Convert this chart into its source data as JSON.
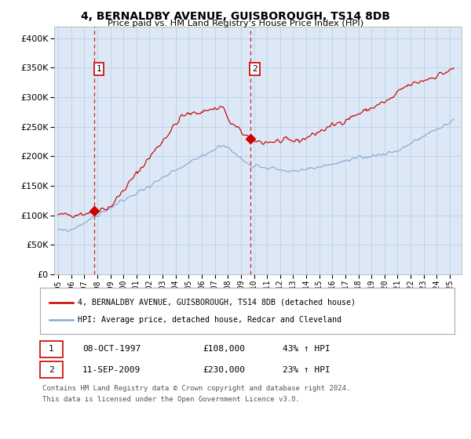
{
  "title": "4, BERNALDBY AVENUE, GUISBOROUGH, TS14 8DB",
  "subtitle": "Price paid vs. HM Land Registry's House Price Index (HPI)",
  "legend_line1": "4, BERNALDBY AVENUE, GUISBOROUGH, TS14 8DB (detached house)",
  "legend_line2": "HPI: Average price, detached house, Redcar and Cleveland",
  "annotation1_date": "08-OCT-1997",
  "annotation1_price": "£108,000",
  "annotation1_hpi": "43% ↑ HPI",
  "annotation2_date": "11-SEP-2009",
  "annotation2_price": "£230,000",
  "annotation2_hpi": "23% ↑ HPI",
  "footer_line1": "Contains HM Land Registry data © Crown copyright and database right 2024.",
  "footer_line2": "This data is licensed under the Open Government Licence v3.0.",
  "red_color": "#cc0000",
  "blue_color": "#88aad4",
  "bg_color": "#dce8f5",
  "marker1_year": 1997.77,
  "marker1_value": 108000,
  "marker2_year": 2009.71,
  "marker2_value": 230000,
  "ylim": [
    0,
    420000
  ],
  "yticks": [
    0,
    50000,
    100000,
    150000,
    200000,
    250000,
    300000,
    350000,
    400000
  ],
  "xlim_left": 1994.7,
  "xlim_right": 2025.9
}
